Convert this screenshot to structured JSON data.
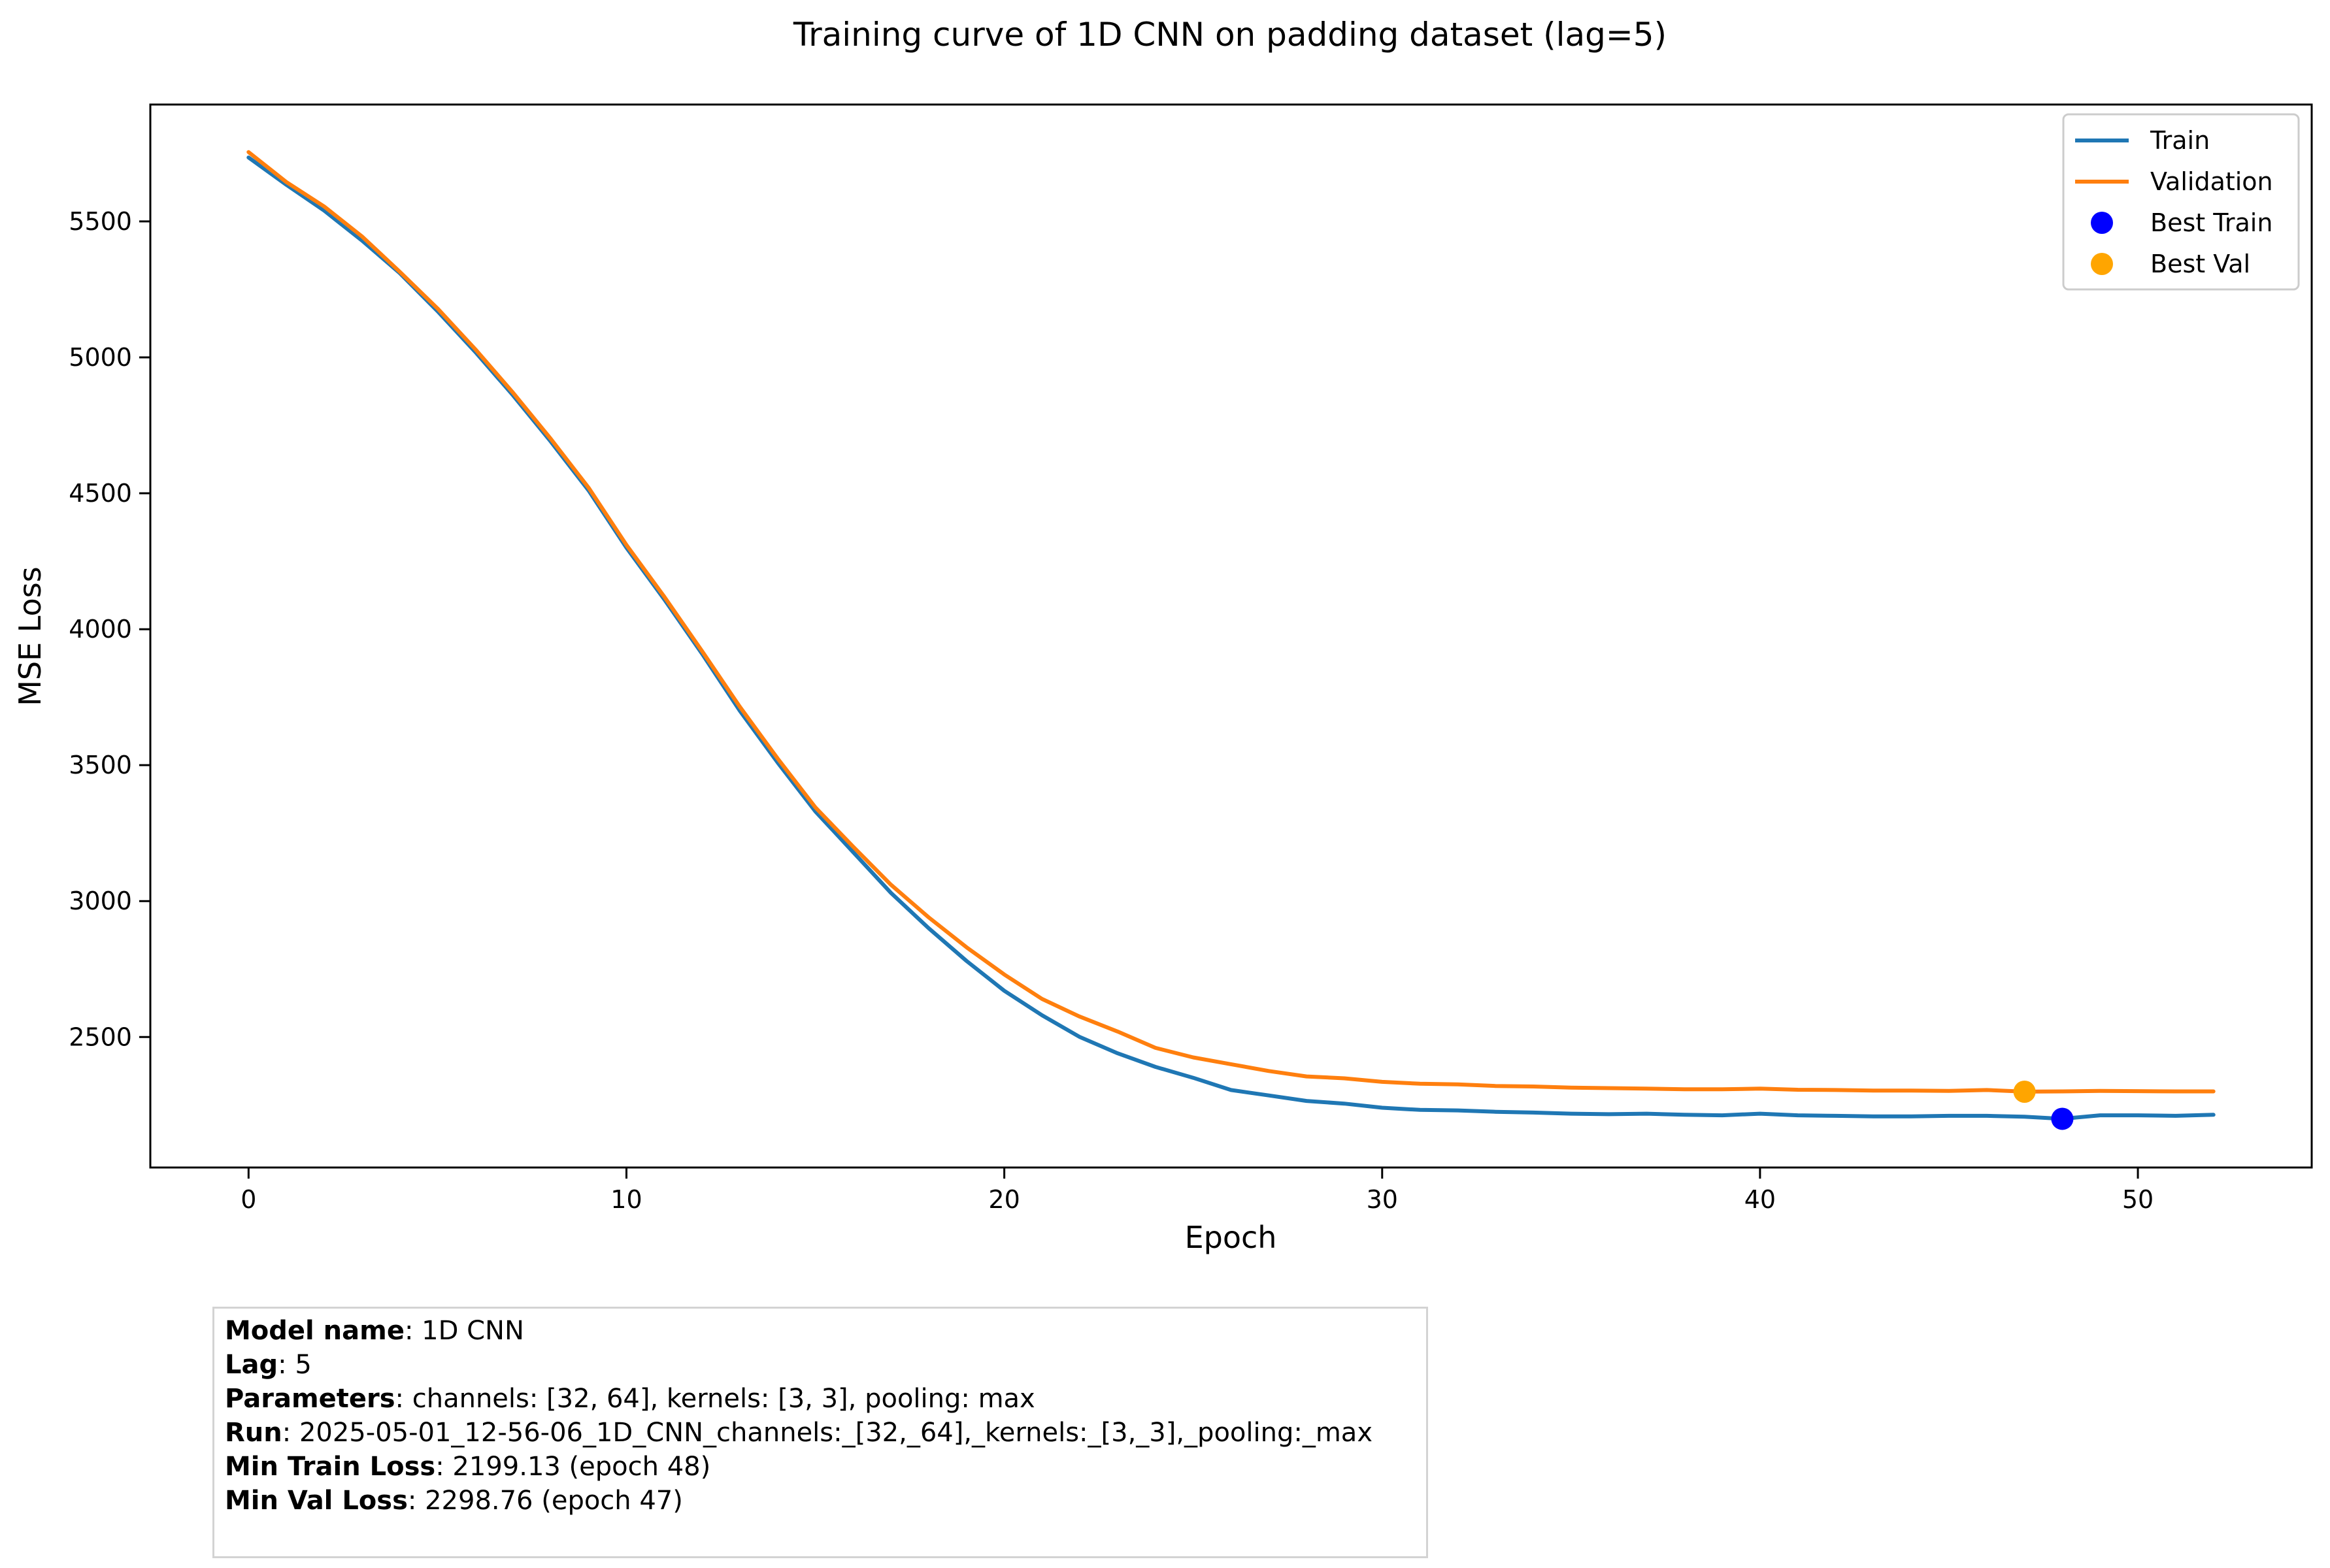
{
  "chart_data": {
    "type": "line",
    "title": "Training curve of 1D CNN on padding dataset (lag=5)",
    "xlabel": "Epoch",
    "ylabel": "MSE Loss",
    "xlim": [
      -2.6,
      54.6
    ],
    "ylim": [
      2020,
      5930
    ],
    "x_ticks": [
      0,
      10,
      20,
      30,
      40,
      50
    ],
    "y_ticks": [
      2500,
      3000,
      3500,
      4000,
      4500,
      5000,
      5500
    ],
    "grid": false,
    "legend_position": "top-right",
    "colors": {
      "train": "#1f77b4",
      "validation": "#ff7f0e",
      "best_train": "#0000ff",
      "best_val": "#ffa500"
    },
    "x": [
      0,
      1,
      2,
      3,
      4,
      5,
      6,
      7,
      8,
      9,
      10,
      11,
      12,
      13,
      14,
      15,
      16,
      17,
      18,
      19,
      20,
      21,
      22,
      23,
      24,
      25,
      26,
      27,
      28,
      29,
      30,
      31,
      32,
      33,
      34,
      35,
      36,
      37,
      38,
      39,
      40,
      41,
      42,
      43,
      44,
      45,
      46,
      47,
      48,
      49,
      50,
      51,
      52
    ],
    "series": [
      {
        "name": "Train",
        "values": [
          5735,
          5635,
          5540,
          5430,
          5310,
          5170,
          5020,
          4860,
          4690,
          4510,
          4300,
          4110,
          3910,
          3700,
          3510,
          3330,
          3180,
          3030,
          2900,
          2780,
          2670,
          2580,
          2500,
          2440,
          2390,
          2350,
          2305,
          2285,
          2265,
          2255,
          2240,
          2232,
          2230,
          2225,
          2222,
          2218,
          2216,
          2218,
          2214,
          2212,
          2218,
          2212,
          2210,
          2208,
          2208,
          2210,
          2210,
          2207,
          2199,
          2212,
          2212,
          2210,
          2214
        ]
      },
      {
        "name": "Validation",
        "values": [
          5755,
          5645,
          5555,
          5445,
          5315,
          5180,
          5030,
          4870,
          4700,
          4520,
          4310,
          4120,
          3920,
          3715,
          3525,
          3345,
          3200,
          3060,
          2940,
          2830,
          2730,
          2640,
          2575,
          2520,
          2460,
          2425,
          2400,
          2375,
          2355,
          2348,
          2335,
          2328,
          2326,
          2320,
          2318,
          2314,
          2312,
          2310,
          2308,
          2308,
          2310,
          2306,
          2305,
          2303,
          2303,
          2302,
          2305,
          2299,
          2300,
          2302,
          2301,
          2300,
          2300
        ]
      }
    ],
    "best_points": [
      {
        "name": "Best Train",
        "x": 48,
        "y": 2199.13
      },
      {
        "name": "Best Val",
        "x": 47,
        "y": 2298.76
      }
    ]
  },
  "info": {
    "lines": [
      {
        "label": "Model name",
        "value": ": 1D CNN"
      },
      {
        "label": "Lag",
        "value": ": 5"
      },
      {
        "label": "Parameters",
        "value": ": channels: [32, 64], kernels: [3, 3], pooling: max"
      },
      {
        "label": "Run",
        "value": ": 2025-05-01_12-56-06_1D_CNN_channels:_[32,_64],_kernels:_[3,_3],_pooling:_max"
      },
      {
        "label": "Min Train Loss",
        "value": ": 2199.13 (epoch 48)"
      },
      {
        "label": "Min Val Loss",
        "value": ": 2298.76 (epoch 47)"
      }
    ]
  }
}
